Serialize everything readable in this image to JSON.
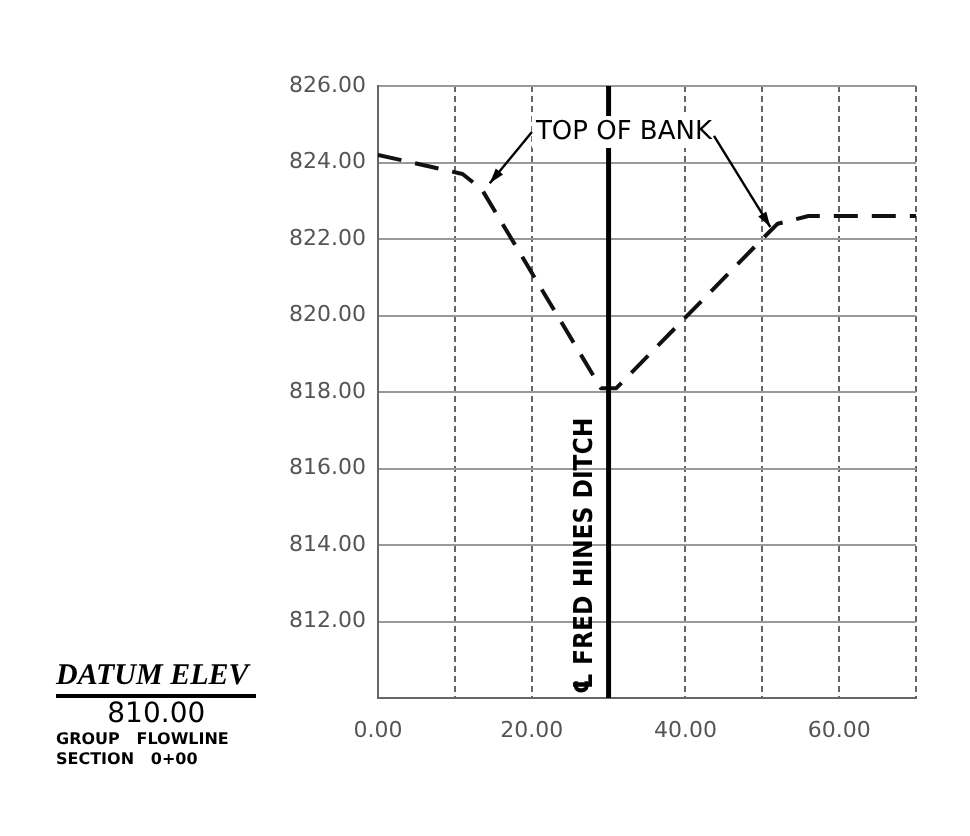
{
  "chart_data": {
    "type": "line",
    "x": [
      0,
      11,
      13.5,
      29,
      31,
      50,
      52,
      56,
      70
    ],
    "series": [
      {
        "color": "#111111",
        "values": [
          824.2,
          823.7,
          823.3,
          818.1,
          818.1,
          822.0,
          822.4,
          822.6,
          822.6
        ]
      }
    ],
    "xlim": [
      0,
      70
    ],
    "xticks": [
      {
        "value": 0,
        "label": "0.00"
      },
      {
        "value": 10,
        "label": null
      },
      {
        "value": 20,
        "label": "20.00"
      },
      {
        "value": 30,
        "label": null
      },
      {
        "value": 40,
        "label": "40.00"
      },
      {
        "value": 50,
        "label": null
      },
      {
        "value": 60,
        "label": "60.00"
      },
      {
        "value": 70,
        "label": null
      }
    ],
    "ylim": [
      810,
      826
    ],
    "yticks": [
      {
        "value": 810,
        "label": null
      },
      {
        "value": 812,
        "label": "812.00"
      },
      {
        "value": 814,
        "label": "814.00"
      },
      {
        "value": 816,
        "label": "816.00"
      },
      {
        "value": 818,
        "label": "818.00"
      },
      {
        "value": 820,
        "label": "820.00"
      },
      {
        "value": 822,
        "label": "822.00"
      },
      {
        "value": 824,
        "label": "824.00"
      },
      {
        "value": 826,
        "label": "826.00"
      }
    ],
    "grid": true,
    "marker": "none",
    "line_style": "dashed",
    "legend": false,
    "ref_lines": [
      {
        "axis": "x",
        "value": 30,
        "label": "℄ FRED HINES DITCH",
        "color": "#000000"
      }
    ],
    "annotations": [
      {
        "text": "TOP OF BANK",
        "x": 13.5,
        "y": 823.3
      },
      "DATUM ELEV",
      "810.00",
      "GROUP   FLOWLINE",
      "SECTION   0+00"
    ]
  }
}
